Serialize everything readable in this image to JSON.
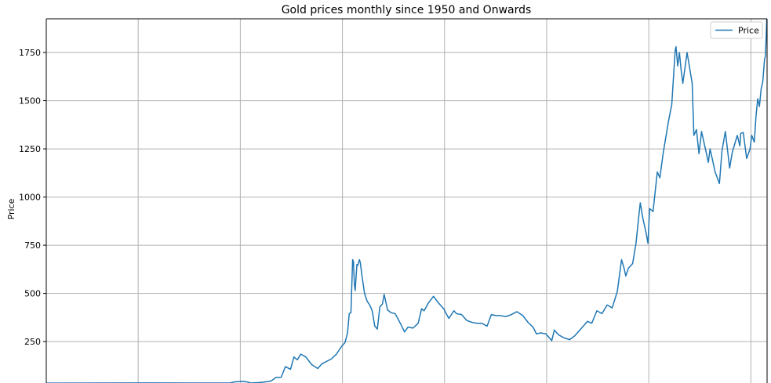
{
  "chart_data": {
    "type": "line",
    "title": "Gold prices monthly since 1950 and Onwards",
    "xlabel": "",
    "ylabel": "Price",
    "x_range": [
      "1950-01",
      "2020-08"
    ],
    "ylim": [
      35,
      1925
    ],
    "yticks": [
      250,
      500,
      750,
      1000,
      1250,
      1500,
      1750
    ],
    "ytick_labels": [
      "250",
      "500",
      "750",
      "1000",
      "1250",
      "1500",
      "1750"
    ],
    "xgrid": [
      "1959-01",
      "1969-01",
      "1979-01",
      "1989-01",
      "1999-01",
      "2009-01",
      "2019-01"
    ],
    "grid": true,
    "legend": {
      "position": "top-right",
      "entries": [
        "Price"
      ]
    },
    "colors": {
      "line": "#1f77b4",
      "grid": "#b0b0b0",
      "axis": "#000000"
    },
    "series": [
      {
        "name": "Price",
        "points": [
          [
            "1950-01",
            34.7
          ],
          [
            "1955-01",
            35.0
          ],
          [
            "1960-01",
            35.3
          ],
          [
            "1965-01",
            35.1
          ],
          [
            "1968-01",
            35.2
          ],
          [
            "1968-06",
            40.5
          ],
          [
            "1969-03",
            43.0
          ],
          [
            "1969-10",
            40.0
          ],
          [
            "1970-01",
            35.0
          ],
          [
            "1970-12",
            37.4
          ],
          [
            "1971-08",
            41.5
          ],
          [
            "1972-01",
            45.0
          ],
          [
            "1972-07",
            64.0
          ],
          [
            "1973-01",
            65.0
          ],
          [
            "1973-06",
            120.0
          ],
          [
            "1973-12",
            106.0
          ],
          [
            "1974-04",
            170.0
          ],
          [
            "1974-08",
            155.0
          ],
          [
            "1974-12",
            185.0
          ],
          [
            "1975-06",
            170.0
          ],
          [
            "1976-01",
            130.0
          ],
          [
            "1976-08",
            110.0
          ],
          [
            "1977-01",
            135.0
          ],
          [
            "1977-12",
            160.0
          ],
          [
            "1978-06",
            185.0
          ],
          [
            "1978-12",
            225.0
          ],
          [
            "1979-04",
            245.0
          ],
          [
            "1979-07",
            295.0
          ],
          [
            "1979-09",
            395.0
          ],
          [
            "1979-11",
            400.0
          ],
          [
            "1980-01",
            675.0
          ],
          [
            "1980-02",
            665.0
          ],
          [
            "1980-03",
            550.0
          ],
          [
            "1980-04",
            515.0
          ],
          [
            "1980-06",
            650.0
          ],
          [
            "1980-07",
            645.0
          ],
          [
            "1980-09",
            675.0
          ],
          [
            "1980-10",
            660.0
          ],
          [
            "1980-12",
            590.0
          ],
          [
            "1981-03",
            500.0
          ],
          [
            "1981-06",
            460.0
          ],
          [
            "1981-09",
            440.0
          ],
          [
            "1981-12",
            410.0
          ],
          [
            "1982-03",
            330.0
          ],
          [
            "1982-06",
            315.0
          ],
          [
            "1982-09",
            430.0
          ],
          [
            "1982-12",
            445.0
          ],
          [
            "1983-02",
            495.0
          ],
          [
            "1983-06",
            415.0
          ],
          [
            "1983-10",
            400.0
          ],
          [
            "1984-03",
            395.0
          ],
          [
            "1984-09",
            345.0
          ],
          [
            "1985-02",
            300.0
          ],
          [
            "1985-06",
            325.0
          ],
          [
            "1985-12",
            320.0
          ],
          [
            "1986-06",
            345.0
          ],
          [
            "1986-10",
            420.0
          ],
          [
            "1987-01",
            410.0
          ],
          [
            "1987-06",
            450.0
          ],
          [
            "1987-12",
            485.0
          ],
          [
            "1988-06",
            450.0
          ],
          [
            "1988-12",
            420.0
          ],
          [
            "1989-06",
            370.0
          ],
          [
            "1989-12",
            410.0
          ],
          [
            "1990-03",
            395.0
          ],
          [
            "1990-09",
            390.0
          ],
          [
            "1991-03",
            360.0
          ],
          [
            "1991-09",
            350.0
          ],
          [
            "1992-03",
            345.0
          ],
          [
            "1992-09",
            345.0
          ],
          [
            "1993-03",
            330.0
          ],
          [
            "1993-08",
            390.0
          ],
          [
            "1994-01",
            385.0
          ],
          [
            "1994-06",
            385.0
          ],
          [
            "1995-01",
            380.0
          ],
          [
            "1995-06",
            387.0
          ],
          [
            "1996-02",
            405.0
          ],
          [
            "1996-09",
            385.0
          ],
          [
            "1997-03",
            350.0
          ],
          [
            "1997-09",
            325.0
          ],
          [
            "1998-01",
            290.0
          ],
          [
            "1998-06",
            295.0
          ],
          [
            "1998-12",
            290.0
          ],
          [
            "1999-07",
            255.0
          ],
          [
            "1999-10",
            310.0
          ],
          [
            "2000-03",
            285.0
          ],
          [
            "2000-09",
            270.0
          ],
          [
            "2001-04",
            260.0
          ],
          [
            "2001-10",
            280.0
          ],
          [
            "2002-06",
            320.0
          ],
          [
            "2003-01",
            355.0
          ],
          [
            "2003-06",
            345.0
          ],
          [
            "2003-12",
            410.0
          ],
          [
            "2004-06",
            395.0
          ],
          [
            "2004-12",
            440.0
          ],
          [
            "2005-06",
            425.0
          ],
          [
            "2005-12",
            510.0
          ],
          [
            "2006-05",
            675.0
          ],
          [
            "2006-08",
            630.0
          ],
          [
            "2006-10",
            590.0
          ],
          [
            "2007-01",
            630.0
          ],
          [
            "2007-06",
            655.0
          ],
          [
            "2007-10",
            760.0
          ],
          [
            "2008-01",
            890.0
          ],
          [
            "2008-03",
            970.0
          ],
          [
            "2008-06",
            890.0
          ],
          [
            "2008-10",
            810.0
          ],
          [
            "2008-12",
            760.0
          ],
          [
            "2009-02",
            940.0
          ],
          [
            "2009-06",
            925.0
          ],
          [
            "2009-11",
            1130.0
          ],
          [
            "2010-02",
            1100.0
          ],
          [
            "2010-06",
            1230.0
          ],
          [
            "2010-12",
            1390.0
          ],
          [
            "2011-04",
            1480.0
          ],
          [
            "2011-08",
            1760.0
          ],
          [
            "2011-09",
            1780.0
          ],
          [
            "2011-11",
            1680.0
          ],
          [
            "2012-01",
            1750.0
          ],
          [
            "2012-03",
            1660.0
          ],
          [
            "2012-05",
            1590.0
          ],
          [
            "2012-10",
            1750.0
          ],
          [
            "2013-01",
            1670.0
          ],
          [
            "2013-04",
            1590.0
          ],
          [
            "2013-06",
            1320.0
          ],
          [
            "2013-09",
            1350.0
          ],
          [
            "2013-12",
            1225.0
          ],
          [
            "2014-03",
            1340.0
          ],
          [
            "2014-06",
            1280.0
          ],
          [
            "2014-11",
            1180.0
          ],
          [
            "2015-01",
            1250.0
          ],
          [
            "2015-07",
            1130.0
          ],
          [
            "2015-12",
            1070.0
          ],
          [
            "2016-03",
            1240.0
          ],
          [
            "2016-07",
            1340.0
          ],
          [
            "2016-12",
            1150.0
          ],
          [
            "2017-03",
            1230.0
          ],
          [
            "2017-09",
            1320.0
          ],
          [
            "2017-12",
            1265.0
          ],
          [
            "2018-01",
            1330.0
          ],
          [
            "2018-04",
            1335.0
          ],
          [
            "2018-08",
            1200.0
          ],
          [
            "2018-12",
            1250.0
          ],
          [
            "2019-02",
            1320.0
          ],
          [
            "2019-05",
            1285.0
          ],
          [
            "2019-07",
            1420.0
          ],
          [
            "2019-09",
            1510.0
          ],
          [
            "2019-11",
            1470.0
          ],
          [
            "2020-01",
            1560.0
          ],
          [
            "2020-03",
            1600.0
          ],
          [
            "2020-05",
            1715.0
          ],
          [
            "2020-06",
            1730.0
          ],
          [
            "2020-07",
            1840.0
          ],
          [
            "2020-08",
            1970.0
          ]
        ]
      }
    ]
  }
}
